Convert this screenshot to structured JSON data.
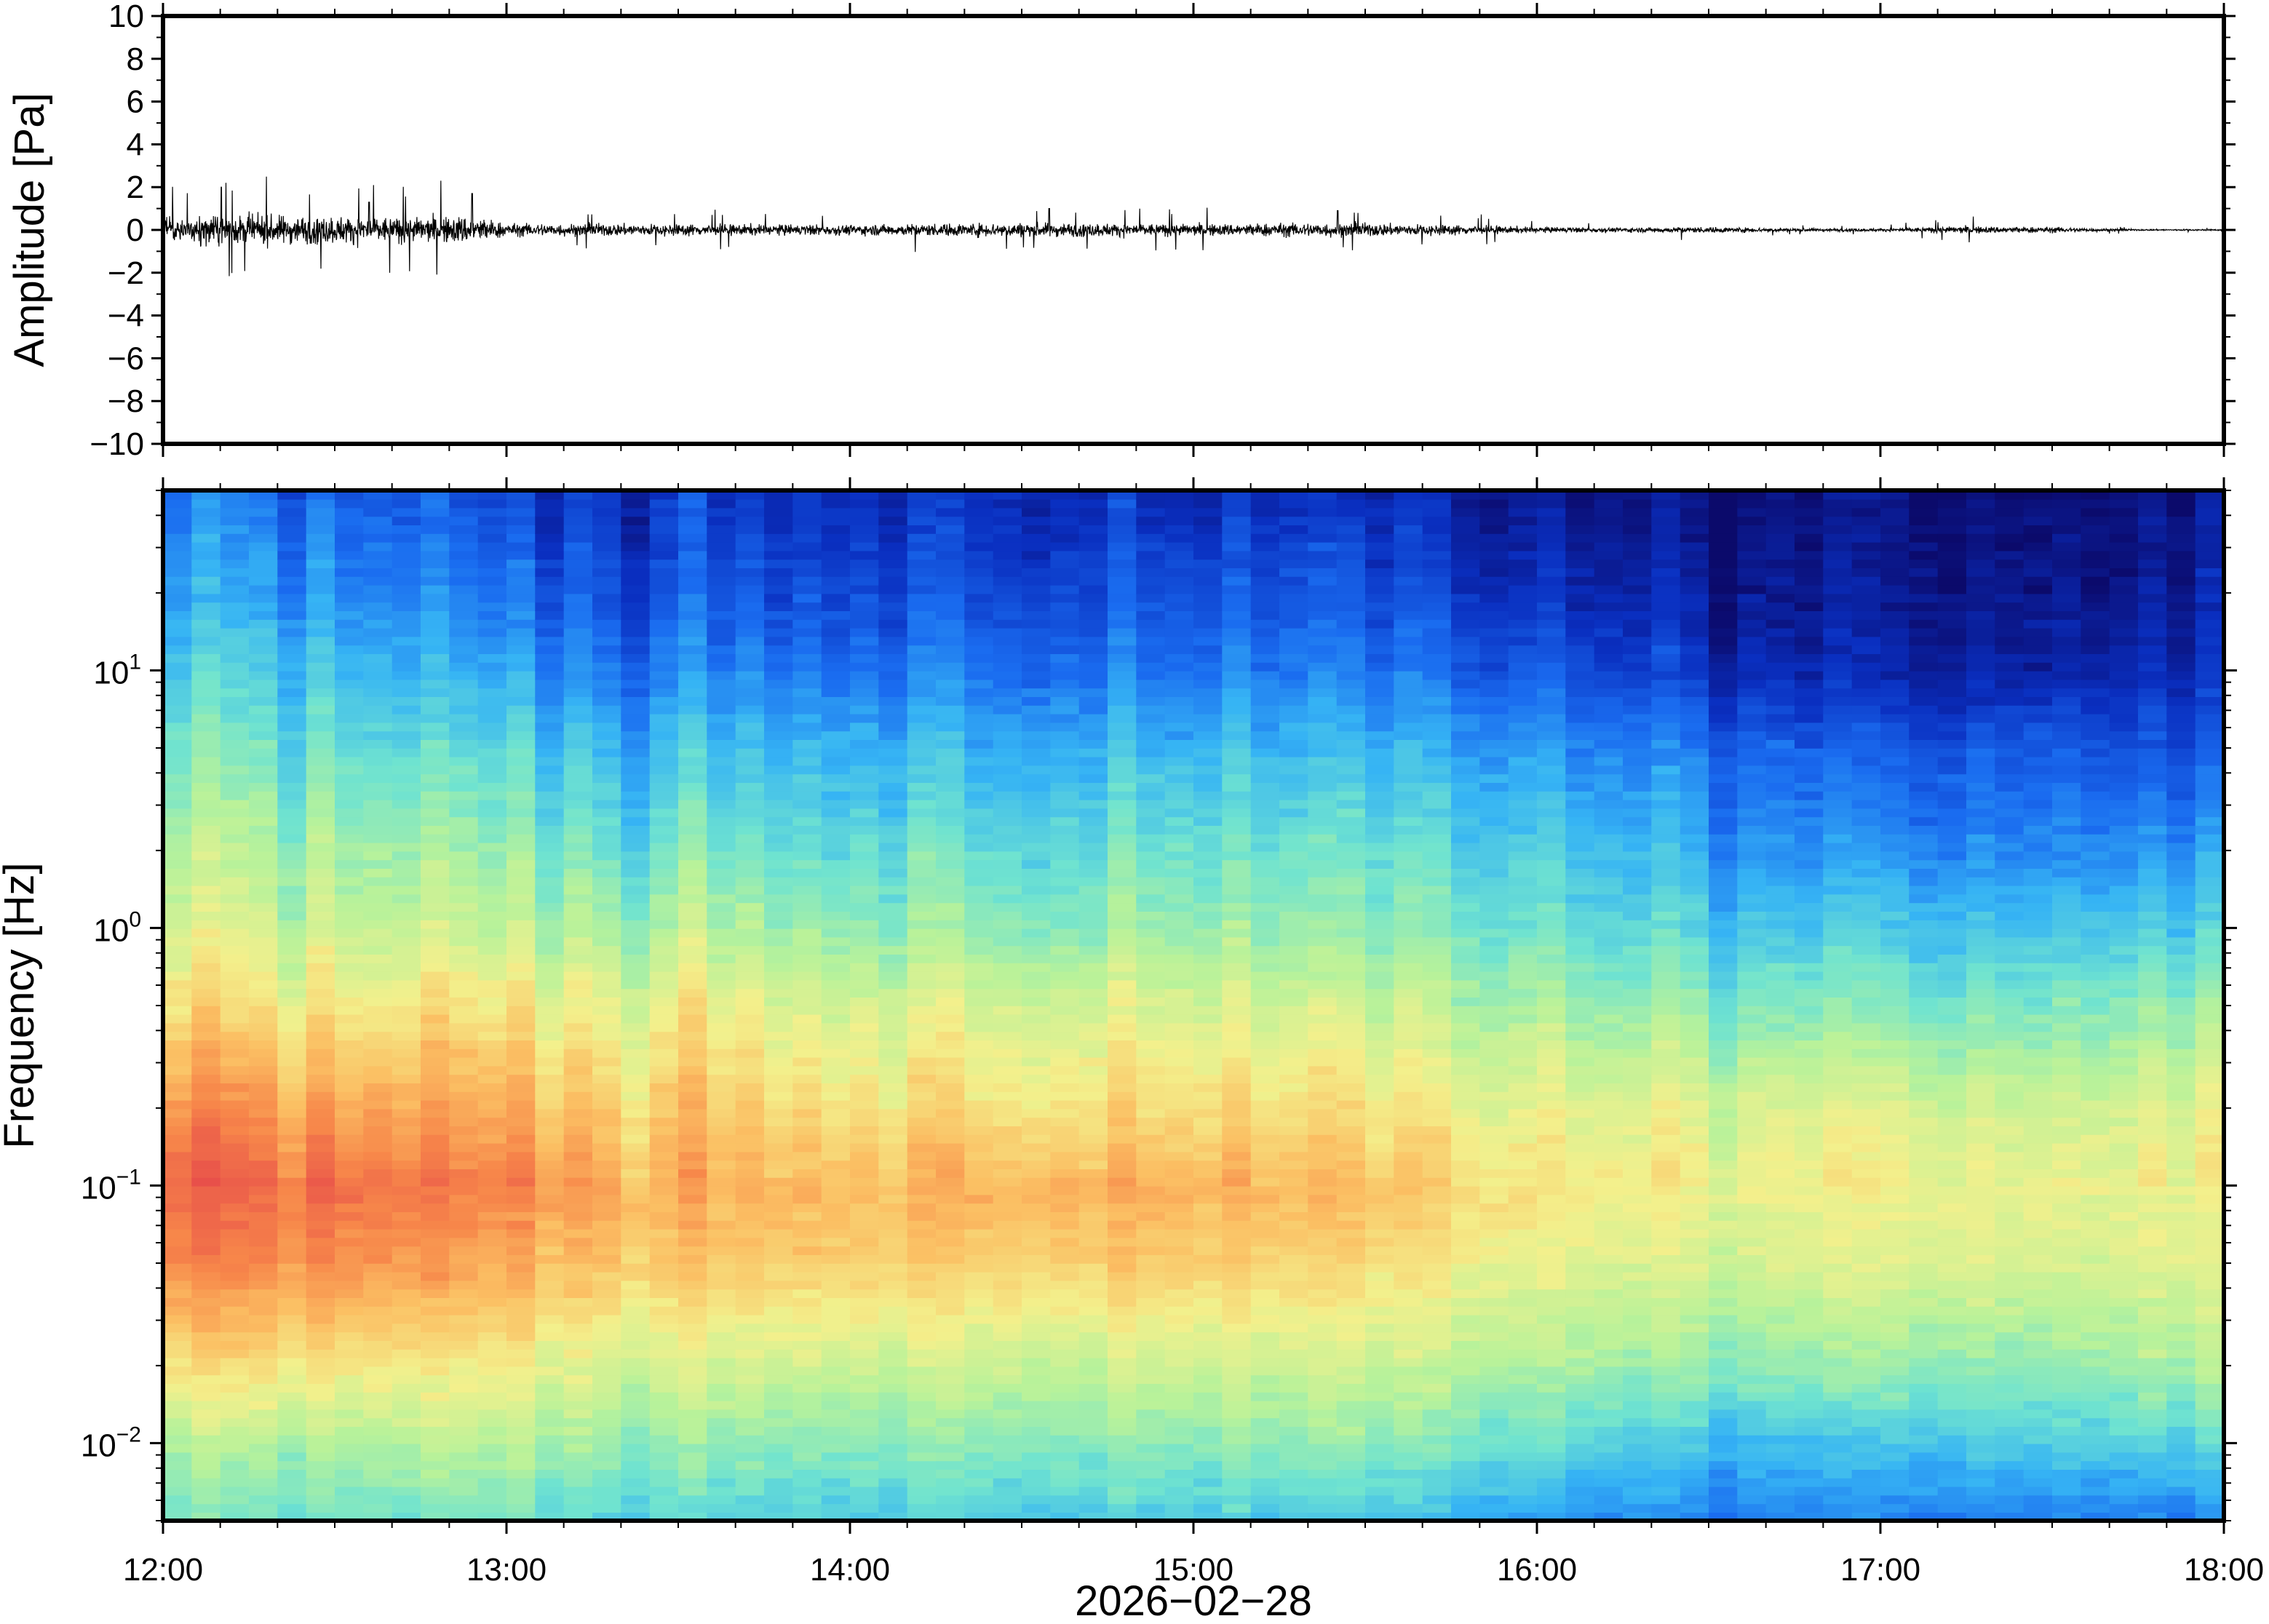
{
  "chart_data": [
    {
      "type": "line",
      "panel": "waveform",
      "ylabel": "Amplitude [Pa]",
      "xlim": [
        "12:00",
        "18:00"
      ],
      "ylim": [
        -10,
        10
      ],
      "yticks": [
        "10",
        "8",
        "6",
        "4",
        "2",
        "0",
        "−2",
        "−4",
        "−6",
        "−8",
        "−10"
      ],
      "ytick_values": [
        10,
        8,
        6,
        4,
        2,
        0,
        -2,
        -4,
        -6,
        -8,
        -10
      ],
      "envelope": {
        "time_hours": [
          12.0,
          12.25,
          12.5,
          12.75,
          12.9,
          13.0,
          13.5,
          14.0,
          14.5,
          15.0,
          15.4,
          15.75,
          16.0,
          16.25,
          16.5,
          16.75,
          17.0,
          17.25,
          17.5,
          17.75,
          18.0
        ],
        "amplitude_pa": [
          0.9,
          1.0,
          0.95,
          0.85,
          1.0,
          0.45,
          0.4,
          0.35,
          0.5,
          0.4,
          0.5,
          0.35,
          0.2,
          0.15,
          0.2,
          0.12,
          0.1,
          0.25,
          0.2,
          0.05,
          0.05
        ]
      },
      "peaks": [
        {
          "time_hours": 12.17,
          "amplitude_pa": 2.0
        },
        {
          "time_hours": 12.9,
          "amplitude_pa": 1.7
        },
        {
          "time_hours": 12.6,
          "amplitude_pa": 1.3
        },
        {
          "time_hours": 14.58,
          "amplitude_pa": 1.0
        },
        {
          "time_hours": 15.42,
          "amplitude_pa": 0.9
        }
      ]
    },
    {
      "type": "heatmap",
      "panel": "spectrogram",
      "ylabel": "Frequency [Hz]",
      "xlabel": "2026−02−28",
      "yscale": "log",
      "xlim": [
        "12:00",
        "18:00"
      ],
      "ylim": [
        0.005,
        50
      ],
      "yticks": [
        {
          "value": 10,
          "base": "10",
          "exp": "1"
        },
        {
          "value": 1,
          "base": "10",
          "exp": "0"
        },
        {
          "value": 0.1,
          "base": "10",
          "exp": "−1"
        },
        {
          "value": 0.01,
          "base": "10",
          "exp": "−2"
        }
      ],
      "xticks": [
        "12:00",
        "13:00",
        "14:00",
        "15:00",
        "16:00",
        "17:00",
        "18:00"
      ],
      "xtick_values": [
        12,
        13,
        14,
        15,
        16,
        17,
        18
      ],
      "colormap": [
        "#0b0a6b",
        "#0a2fc0",
        "#1a6cf0",
        "#36b4f4",
        "#6fe3d0",
        "#b8f29a",
        "#f3f08c",
        "#fbbf63",
        "#f7874a",
        "#e8504a"
      ],
      "grid_time_hours": [
        12.0,
        12.5,
        13.0,
        13.5,
        14.0,
        14.5,
        15.0,
        15.5,
        16.0,
        16.5,
        17.0,
        17.5,
        18.0
      ],
      "grid_log10_freq": [
        -2.3,
        -2.0,
        -1.7,
        -1.3,
        -1.0,
        -0.7,
        -0.3,
        0.0,
        0.3,
        0.7,
        1.0,
        1.3,
        1.7
      ],
      "level": [
        [
          0.45,
          0.45,
          0.45,
          0.4,
          0.4,
          0.4,
          0.38,
          0.38,
          0.3,
          0.25,
          0.25,
          0.25,
          0.25
        ],
        [
          0.55,
          0.55,
          0.55,
          0.5,
          0.5,
          0.5,
          0.5,
          0.5,
          0.45,
          0.35,
          0.35,
          0.4,
          0.4
        ],
        [
          0.7,
          0.7,
          0.65,
          0.6,
          0.6,
          0.6,
          0.6,
          0.6,
          0.55,
          0.5,
          0.5,
          0.5,
          0.55
        ],
        [
          0.88,
          0.88,
          0.8,
          0.75,
          0.75,
          0.75,
          0.75,
          0.72,
          0.65,
          0.6,
          0.62,
          0.62,
          0.62
        ],
        [
          0.95,
          0.95,
          0.88,
          0.8,
          0.8,
          0.82,
          0.8,
          0.78,
          0.7,
          0.65,
          0.65,
          0.65,
          0.65
        ],
        [
          0.85,
          0.85,
          0.78,
          0.75,
          0.72,
          0.72,
          0.72,
          0.7,
          0.65,
          0.62,
          0.6,
          0.6,
          0.62
        ],
        [
          0.7,
          0.7,
          0.66,
          0.65,
          0.63,
          0.63,
          0.62,
          0.6,
          0.55,
          0.48,
          0.45,
          0.48,
          0.5
        ],
        [
          0.6,
          0.6,
          0.55,
          0.55,
          0.52,
          0.52,
          0.52,
          0.5,
          0.45,
          0.38,
          0.35,
          0.38,
          0.38
        ],
        [
          0.55,
          0.55,
          0.48,
          0.45,
          0.45,
          0.45,
          0.45,
          0.45,
          0.4,
          0.3,
          0.25,
          0.28,
          0.28
        ],
        [
          0.45,
          0.45,
          0.38,
          0.35,
          0.35,
          0.35,
          0.35,
          0.35,
          0.3,
          0.22,
          0.15,
          0.2,
          0.15
        ],
        [
          0.38,
          0.38,
          0.28,
          0.25,
          0.25,
          0.25,
          0.25,
          0.25,
          0.2,
          0.1,
          0.05,
          0.08,
          0.1
        ],
        [
          0.3,
          0.3,
          0.2,
          0.18,
          0.18,
          0.18,
          0.18,
          0.18,
          0.12,
          0.05,
          0.02,
          0.05,
          0.05
        ],
        [
          0.22,
          0.22,
          0.12,
          0.12,
          0.12,
          0.12,
          0.1,
          0.1,
          0.05,
          0.02,
          0.0,
          0.02,
          0.02
        ]
      ]
    }
  ]
}
